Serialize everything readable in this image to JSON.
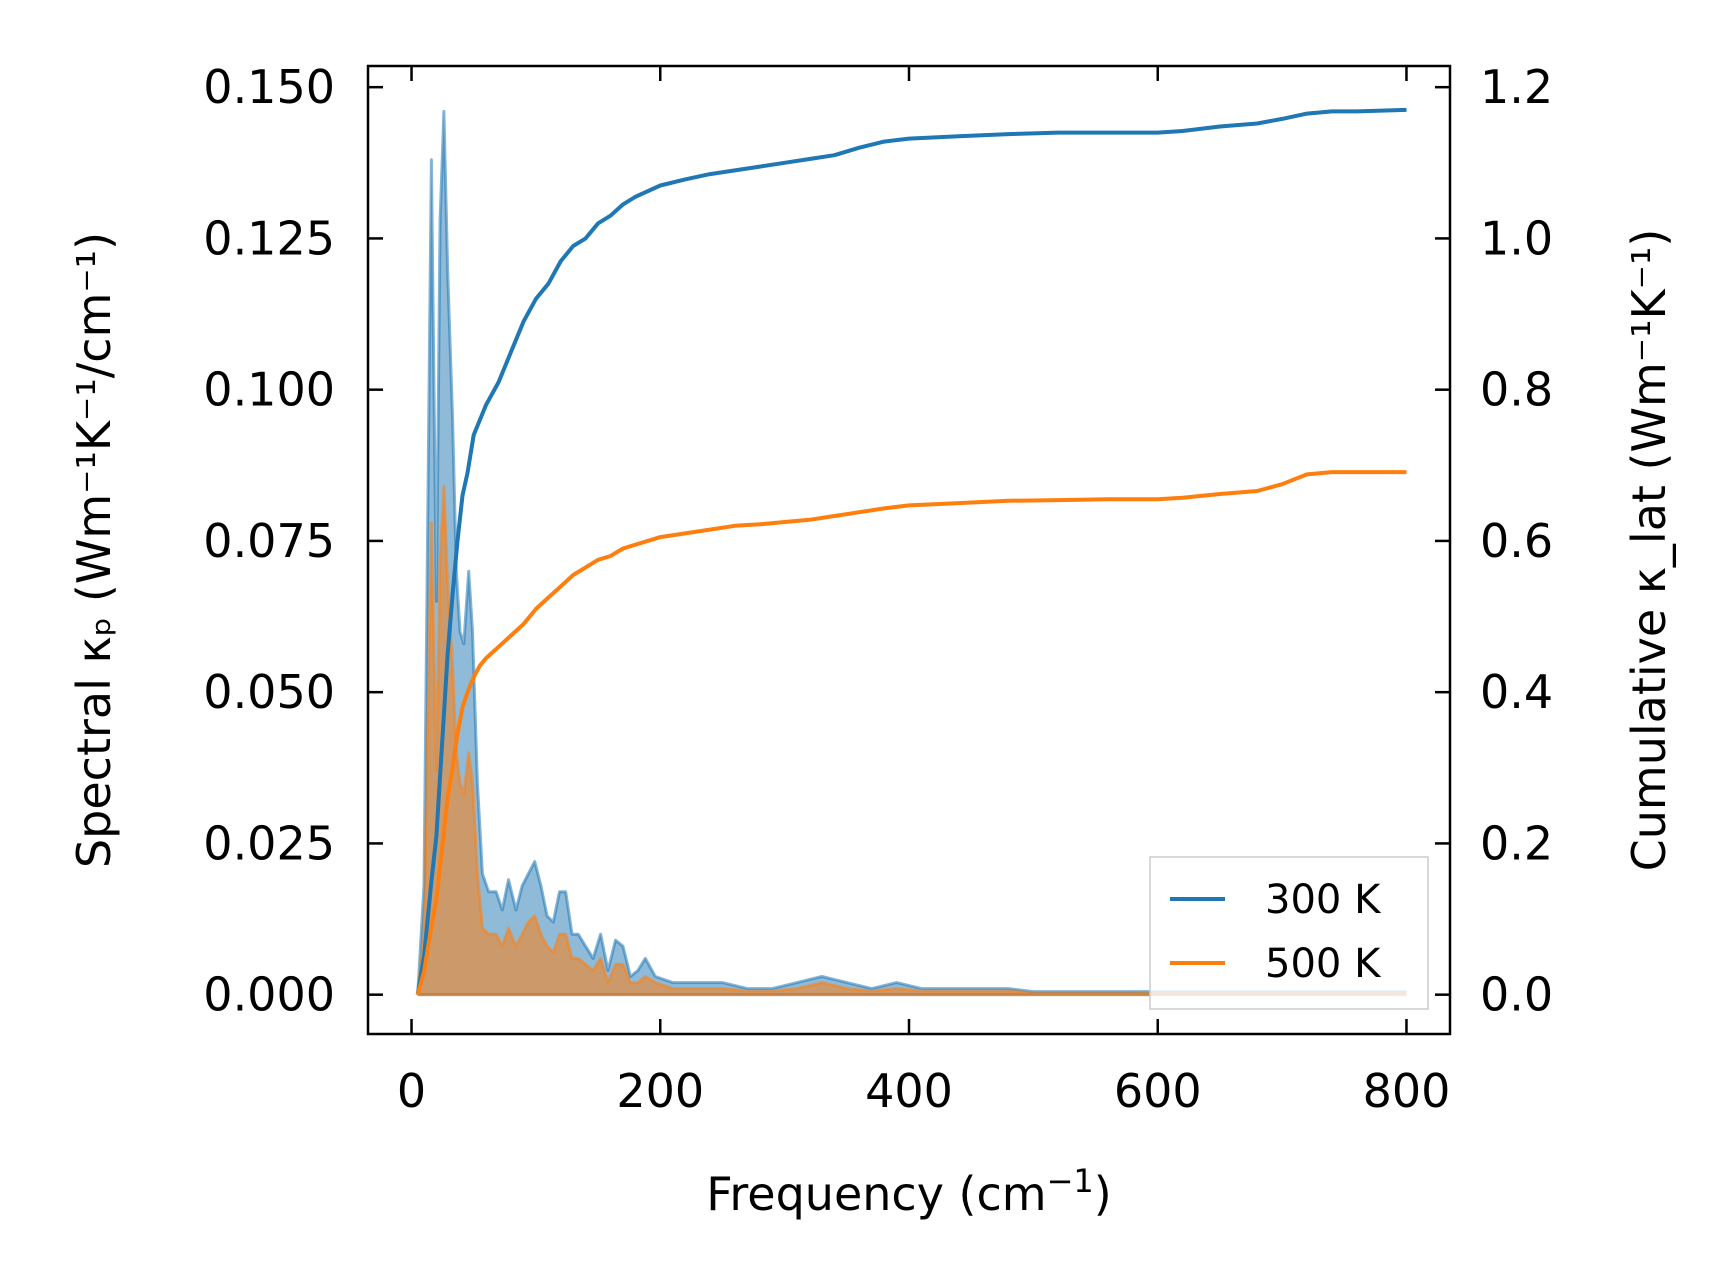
{
  "chart_data": {
    "type": "line",
    "title": "",
    "xlabel": {
      "text": "Frequency (cm",
      "sup": "−1",
      "tail": ")"
    },
    "ylabel_left": "Spectral κₚ (Wm⁻¹K⁻¹/cm⁻¹)",
    "ylabel_right": "Cumulative κ_lat (Wm⁻¹K⁻¹)",
    "xlim": [
      -35,
      835
    ],
    "ylim_left": [
      -0.0065,
      0.1535
    ],
    "ylim_right": [
      -0.052,
      1.228
    ],
    "x_ticks": [
      0,
      200,
      400,
      600,
      800
    ],
    "x_tick_labels": [
      "0",
      "200",
      "400",
      "600",
      "800"
    ],
    "y_left_ticks": [
      0.0,
      0.025,
      0.05,
      0.075,
      0.1,
      0.125,
      0.15
    ],
    "y_left_tick_labels": [
      "0.000",
      "0.025",
      "0.050",
      "0.075",
      "0.100",
      "0.125",
      "0.150"
    ],
    "y_right_ticks": [
      0.0,
      0.2,
      0.4,
      0.6,
      0.8,
      1.0,
      1.2
    ],
    "y_right_tick_labels": [
      "0.0",
      "0.2",
      "0.4",
      "0.6",
      "0.8",
      "1.0",
      "1.2"
    ],
    "legend": {
      "position": "lower-right",
      "entries": [
        "300 K",
        "500 K"
      ]
    },
    "colors": {
      "300K": "#1f77b4",
      "500K": "#ff7f0e",
      "fill300": "#1f77b4",
      "fill500": "#ff7f0e"
    },
    "series": [
      {
        "name": "300 K",
        "kind": "spectral",
        "axis": "left",
        "x": [
          5,
          10,
          16,
          20,
          23,
          26,
          29,
          33,
          36,
          39,
          42,
          46,
          49,
          53,
          57,
          62,
          68,
          73,
          78,
          84,
          89,
          94,
          99,
          104,
          109,
          114,
          119,
          124,
          129,
          134,
          140,
          146,
          152,
          158,
          164,
          170,
          176,
          182,
          188,
          196,
          210,
          230,
          250,
          270,
          290,
          310,
          330,
          350,
          370,
          390,
          410,
          440,
          470,
          480,
          500,
          550,
          600,
          620,
          650,
          680,
          700,
          720,
          750,
          800
        ],
        "values": [
          0.0,
          0.018,
          0.138,
          0.065,
          0.128,
          0.146,
          0.12,
          0.095,
          0.07,
          0.06,
          0.058,
          0.07,
          0.06,
          0.035,
          0.02,
          0.017,
          0.017,
          0.014,
          0.019,
          0.014,
          0.018,
          0.02,
          0.022,
          0.018,
          0.013,
          0.012,
          0.017,
          0.017,
          0.01,
          0.01,
          0.008,
          0.006,
          0.01,
          0.004,
          0.009,
          0.008,
          0.003,
          0.004,
          0.006,
          0.003,
          0.002,
          0.002,
          0.002,
          0.001,
          0.001,
          0.002,
          0.003,
          0.002,
          0.001,
          0.002,
          0.001,
          0.001,
          0.001,
          0.001,
          0.0005,
          0.0005,
          0.0005,
          0.0005,
          0.0005,
          0.0005,
          0.0005,
          0.0005,
          0.0005,
          0.0005
        ]
      },
      {
        "name": "500 K",
        "kind": "spectral",
        "axis": "left",
        "x": [
          5,
          10,
          16,
          20,
          23,
          26,
          29,
          33,
          36,
          39,
          42,
          46,
          49,
          53,
          57,
          62,
          68,
          73,
          78,
          84,
          89,
          94,
          99,
          104,
          109,
          114,
          119,
          124,
          129,
          134,
          140,
          146,
          152,
          158,
          164,
          170,
          176,
          182,
          188,
          196,
          210,
          230,
          250,
          270,
          290,
          310,
          330,
          350,
          370,
          390,
          410,
          440,
          470,
          480,
          500,
          550,
          600,
          620,
          650,
          680,
          700,
          720,
          750,
          800
        ],
        "values": [
          0.0,
          0.01,
          0.078,
          0.037,
          0.072,
          0.084,
          0.068,
          0.054,
          0.04,
          0.035,
          0.033,
          0.04,
          0.035,
          0.02,
          0.011,
          0.01,
          0.01,
          0.008,
          0.011,
          0.008,
          0.01,
          0.012,
          0.013,
          0.01,
          0.008,
          0.007,
          0.01,
          0.01,
          0.006,
          0.006,
          0.005,
          0.004,
          0.006,
          0.002,
          0.005,
          0.005,
          0.002,
          0.002,
          0.003,
          0.002,
          0.001,
          0.001,
          0.001,
          0.0006,
          0.0006,
          0.001,
          0.002,
          0.001,
          0.0006,
          0.001,
          0.0006,
          0.0006,
          0.0006,
          0.0006,
          0.0003,
          0.0003,
          0.0003,
          0.0003,
          0.0003,
          0.0003,
          0.0003,
          0.0003,
          0.0003,
          0.0003
        ]
      },
      {
        "name": "300 K",
        "kind": "cumulative",
        "axis": "right",
        "x": [
          5,
          10,
          16,
          20,
          23,
          26,
          29,
          33,
          37,
          41,
          45,
          50,
          55,
          60,
          70,
          80,
          90,
          100,
          110,
          120,
          130,
          140,
          150,
          160,
          170,
          180,
          200,
          220,
          240,
          260,
          280,
          300,
          320,
          340,
          360,
          380,
          400,
          440,
          480,
          520,
          560,
          600,
          620,
          650,
          680,
          700,
          720,
          740,
          760,
          800
        ],
        "values": [
          0.0,
          0.05,
          0.15,
          0.21,
          0.29,
          0.37,
          0.45,
          0.53,
          0.6,
          0.66,
          0.69,
          0.74,
          0.76,
          0.78,
          0.81,
          0.85,
          0.89,
          0.92,
          0.94,
          0.97,
          0.99,
          1.0,
          1.02,
          1.03,
          1.045,
          1.055,
          1.07,
          1.078,
          1.085,
          1.09,
          1.095,
          1.1,
          1.105,
          1.11,
          1.12,
          1.128,
          1.132,
          1.135,
          1.138,
          1.14,
          1.14,
          1.14,
          1.142,
          1.148,
          1.152,
          1.158,
          1.165,
          1.168,
          1.168,
          1.17
        ]
      },
      {
        "name": "500 K",
        "kind": "cumulative",
        "axis": "right",
        "x": [
          5,
          10,
          16,
          20,
          23,
          26,
          29,
          33,
          37,
          41,
          45,
          50,
          55,
          60,
          70,
          80,
          90,
          100,
          110,
          120,
          130,
          140,
          150,
          160,
          170,
          180,
          200,
          220,
          240,
          260,
          280,
          300,
          320,
          340,
          360,
          380,
          400,
          440,
          480,
          520,
          560,
          600,
          620,
          650,
          680,
          700,
          720,
          740,
          760,
          800
        ],
        "values": [
          0.0,
          0.03,
          0.09,
          0.125,
          0.17,
          0.215,
          0.26,
          0.3,
          0.345,
          0.38,
          0.4,
          0.42,
          0.435,
          0.445,
          0.46,
          0.475,
          0.49,
          0.51,
          0.525,
          0.54,
          0.555,
          0.565,
          0.575,
          0.58,
          0.59,
          0.595,
          0.605,
          0.61,
          0.615,
          0.62,
          0.622,
          0.625,
          0.628,
          0.633,
          0.638,
          0.643,
          0.647,
          0.65,
          0.653,
          0.654,
          0.655,
          0.655,
          0.657,
          0.662,
          0.666,
          0.675,
          0.688,
          0.691,
          0.691,
          0.691
        ]
      }
    ]
  }
}
